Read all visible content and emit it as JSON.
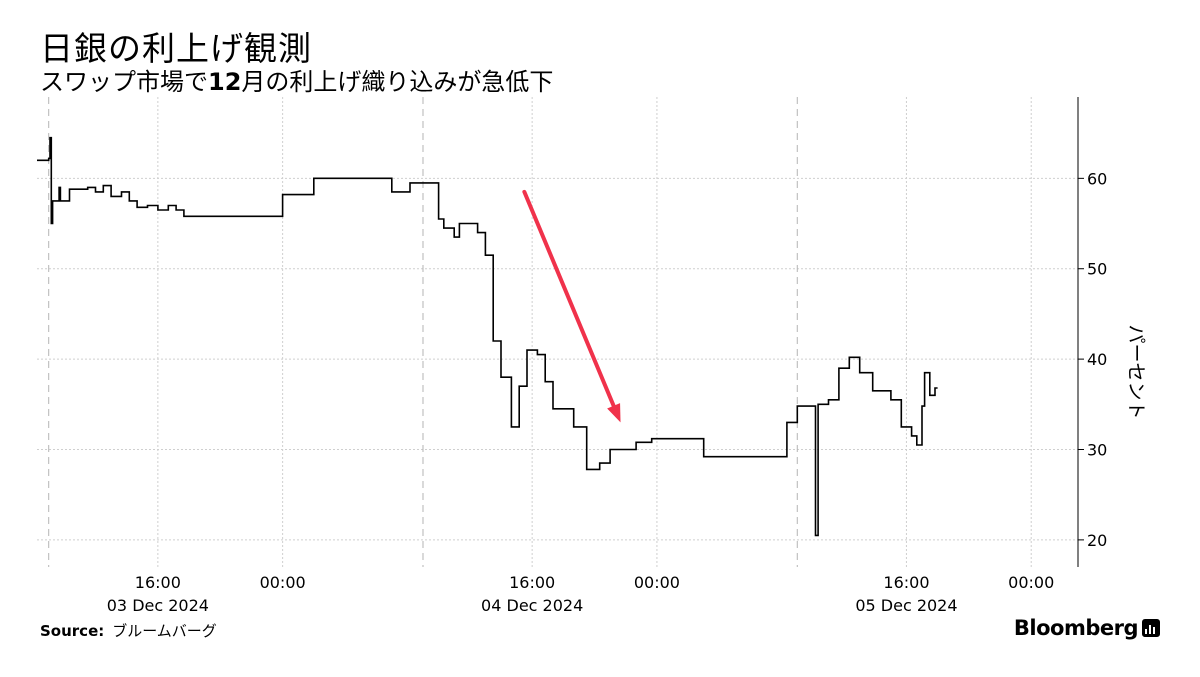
{
  "header": {
    "title": "日銀の利上げ観測",
    "subtitle_prefix": "スワップ市場で",
    "subtitle_bold": "12",
    "subtitle_suffix": "月の利上げ織り込みが急低下"
  },
  "footer": {
    "source_label": "Source:",
    "source_text": "ブルームバーグ",
    "brand": "Bloomberg"
  },
  "colors": {
    "line": "#000000",
    "arrow": "#f0324b",
    "grid": "#cfcfcf",
    "axis": "#000000"
  },
  "chart_data": {
    "type": "line",
    "title": "日銀の利上げ観測",
    "subtitle": "スワップ市場で12月の利上げ織り込みが急低下",
    "ylabel": "パーセント",
    "y_axis_position": "right",
    "ylim": [
      17,
      69
    ],
    "yticks": [
      20,
      30,
      40,
      50,
      60
    ],
    "xlim": [
      "2024-12-03T08:15",
      "2024-12-06T03:00"
    ],
    "grid": true,
    "day_separators": [
      "2024-12-03T09:00",
      "2024-12-04T09:00",
      "2024-12-05T09:00"
    ],
    "xticks": [
      {
        "at": "2024-12-03T16:00",
        "time": "16:00",
        "date": "03 Dec 2024"
      },
      {
        "at": "2024-12-04T00:00",
        "time": "00:00",
        "date": ""
      },
      {
        "at": "2024-12-04T16:00",
        "time": "16:00",
        "date": "04 Dec 2024"
      },
      {
        "at": "2024-12-05T00:00",
        "time": "00:00",
        "date": ""
      },
      {
        "at": "2024-12-05T16:00",
        "time": "16:00",
        "date": "05 Dec 2024"
      },
      {
        "at": "2024-12-06T00:00",
        "time": "00:00",
        "date": ""
      }
    ],
    "series": [
      {
        "name": "",
        "step": true,
        "points": [
          [
            "2024-12-03T08:15",
            62.0
          ],
          [
            "2024-12-03T09:00",
            62.2
          ],
          [
            "2024-12-03T09:05",
            64.5
          ],
          [
            "2024-12-03T09:10",
            55.0
          ],
          [
            "2024-12-03T09:15",
            57.5
          ],
          [
            "2024-12-03T09:40",
            59.0
          ],
          [
            "2024-12-03T09:45",
            57.5
          ],
          [
            "2024-12-03T10:20",
            58.8
          ],
          [
            "2024-12-03T11:30",
            59.0
          ],
          [
            "2024-12-03T12:00",
            58.5
          ],
          [
            "2024-12-03T12:30",
            59.2
          ],
          [
            "2024-12-03T13:00",
            58.0
          ],
          [
            "2024-12-03T13:40",
            58.5
          ],
          [
            "2024-12-03T14:10",
            57.5
          ],
          [
            "2024-12-03T14:40",
            56.8
          ],
          [
            "2024-12-03T15:20",
            57.0
          ],
          [
            "2024-12-03T16:00",
            56.5
          ],
          [
            "2024-12-03T16:40",
            57.0
          ],
          [
            "2024-12-03T17:10",
            56.5
          ],
          [
            "2024-12-03T17:40",
            55.8
          ],
          [
            "2024-12-04T00:00",
            58.2
          ],
          [
            "2024-12-04T02:00",
            60.0
          ],
          [
            "2024-12-04T07:00",
            58.5
          ],
          [
            "2024-12-04T08:10",
            59.5
          ],
          [
            "2024-12-04T10:00",
            55.5
          ],
          [
            "2024-12-04T10:20",
            54.5
          ],
          [
            "2024-12-04T11:00",
            53.5
          ],
          [
            "2024-12-04T11:20",
            55.0
          ],
          [
            "2024-12-04T12:30",
            54.0
          ],
          [
            "2024-12-04T13:00",
            51.5
          ],
          [
            "2024-12-04T13:30",
            42.0
          ],
          [
            "2024-12-04T14:00",
            38.0
          ],
          [
            "2024-12-04T14:40",
            32.5
          ],
          [
            "2024-12-04T15:10",
            37.0
          ],
          [
            "2024-12-04T15:40",
            41.0
          ],
          [
            "2024-12-04T16:20",
            40.5
          ],
          [
            "2024-12-04T16:50",
            37.5
          ],
          [
            "2024-12-04T17:20",
            34.5
          ],
          [
            "2024-12-04T18:00",
            34.5
          ],
          [
            "2024-12-04T18:40",
            32.5
          ],
          [
            "2024-12-04T19:30",
            27.8
          ],
          [
            "2024-12-04T20:20",
            28.5
          ],
          [
            "2024-12-04T21:00",
            30.0
          ],
          [
            "2024-12-04T22:40",
            30.8
          ],
          [
            "2024-12-04T23:40",
            31.2
          ],
          [
            "2024-12-05T03:00",
            29.2
          ],
          [
            "2024-12-05T08:20",
            33.0
          ],
          [
            "2024-12-05T09:00",
            34.8
          ],
          [
            "2024-12-05T10:10",
            20.5
          ],
          [
            "2024-12-05T10:20",
            35.0
          ],
          [
            "2024-12-05T11:00",
            35.5
          ],
          [
            "2024-12-05T11:40",
            39.0
          ],
          [
            "2024-12-05T12:20",
            40.2
          ],
          [
            "2024-12-05T13:00",
            38.5
          ],
          [
            "2024-12-05T13:50",
            36.5
          ],
          [
            "2024-12-05T15:00",
            35.5
          ],
          [
            "2024-12-05T15:40",
            32.5
          ],
          [
            "2024-12-05T16:20",
            31.5
          ],
          [
            "2024-12-05T16:40",
            30.5
          ],
          [
            "2024-12-05T17:00",
            34.8
          ],
          [
            "2024-12-05T17:10",
            38.5
          ],
          [
            "2024-12-05T17:30",
            36.0
          ],
          [
            "2024-12-05T17:50",
            36.8
          ],
          [
            "2024-12-05T18:00",
            36.8
          ]
        ]
      }
    ],
    "annotations": [
      {
        "type": "arrow",
        "from": [
          "2024-12-04T15:30",
          58.5
        ],
        "to": [
          "2024-12-04T21:40",
          33.0
        ]
      }
    ]
  }
}
